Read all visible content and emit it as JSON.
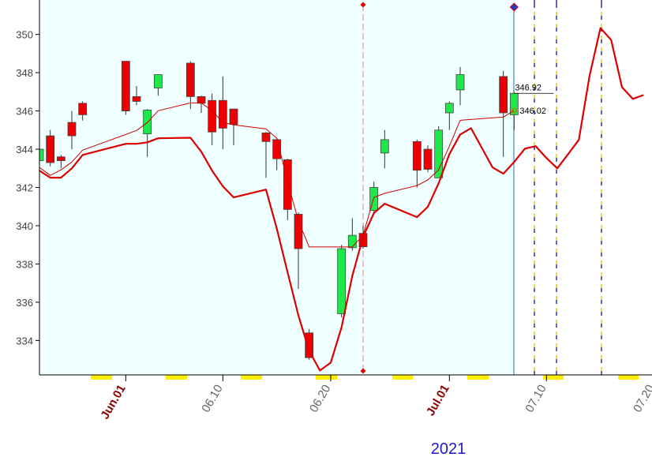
{
  "chart_data": {
    "type": "candlestick",
    "year_label": "2021",
    "xlim": [
      "2021-05-24",
      "2021-07-20"
    ],
    "xticks": [
      {
        "value": "2021-06-01",
        "label": "Jun.01"
      },
      {
        "value": "2021-06-10",
        "label": "06.10"
      },
      {
        "value": "2021-06-20",
        "label": "06.20"
      },
      {
        "value": "2021-07-01",
        "label": "Jul.01"
      },
      {
        "value": "2021-07-10",
        "label": "07.10"
      },
      {
        "value": "2021-07-20",
        "label": "07.20"
      }
    ],
    "ylim": [
      332.2,
      351.8
    ],
    "yticks": [
      334,
      336,
      338,
      340,
      342,
      344,
      346,
      348,
      350
    ],
    "up_color": "#1ee84a",
    "down_color": "#ee0000",
    "candles": {
      "x": [
        "2021-05-24",
        "2021-05-25",
        "2021-05-26",
        "2021-05-27",
        "2021-05-28",
        "2021-06-01",
        "2021-06-02",
        "2021-06-03",
        "2021-06-04",
        "2021-06-07",
        "2021-06-08",
        "2021-06-09",
        "2021-06-10",
        "2021-06-11",
        "2021-06-14",
        "2021-06-15",
        "2021-06-16",
        "2021-06-17",
        "2021-06-18",
        "2021-06-21",
        "2021-06-22",
        "2021-06-23",
        "2021-06-24",
        "2021-06-25",
        "2021-06-28",
        "2021-06-29",
        "2021-06-30",
        "2021-07-01",
        "2021-07-02",
        "2021-07-06",
        "2021-07-07"
      ],
      "open": [
        343.4,
        344.7,
        343.6,
        345.4,
        346.4,
        348.6,
        346.75,
        344.8,
        347.2,
        348.5,
        346.75,
        346.55,
        346.55,
        346.1,
        344.85,
        344.5,
        343.45,
        340.6,
        334.4,
        335.4,
        338.85,
        339.6,
        340.8,
        343.8,
        344.4,
        344.0,
        342.5,
        345.9,
        347.1,
        347.8,
        345.8
      ],
      "high": [
        344.3,
        345.0,
        343.7,
        346.0,
        346.5,
        348.6,
        347.3,
        346.1,
        347.9,
        348.6,
        346.8,
        346.9,
        347.8,
        346.1,
        344.9,
        344.6,
        343.5,
        340.7,
        334.6,
        339.0,
        340.4,
        340.0,
        342.3,
        345.0,
        344.5,
        344.2,
        345.2,
        346.5,
        348.3,
        348.1,
        347.0
      ],
      "low": [
        343.2,
        343.1,
        343.0,
        344.0,
        345.5,
        345.8,
        346.3,
        343.6,
        346.8,
        346.1,
        345.9,
        344.2,
        344.0,
        344.2,
        342.5,
        342.9,
        340.3,
        336.7,
        333.0,
        335.2,
        338.7,
        338.8,
        340.6,
        343.0,
        342.0,
        342.8,
        342.5,
        345.0,
        346.3,
        343.6,
        345.0
      ],
      "close": [
        344.0,
        343.3,
        343.4,
        344.7,
        345.8,
        346.0,
        346.5,
        346.05,
        347.9,
        346.75,
        346.4,
        344.9,
        345.1,
        345.3,
        344.4,
        343.5,
        340.85,
        338.8,
        333.1,
        338.8,
        339.5,
        338.9,
        342.0,
        344.5,
        342.9,
        342.95,
        345.0,
        346.4,
        347.9,
        345.9,
        346.92
      ]
    },
    "series": [
      {
        "color": "#cc0000",
        "line_width": 1,
        "x": [
          "2021-05-24",
          "2021-05-25",
          "2021-05-26",
          "2021-05-27",
          "2021-05-28",
          "2021-06-01",
          "2021-06-02",
          "2021-06-03",
          "2021-06-04",
          "2021-06-07",
          "2021-06-08",
          "2021-06-09",
          "2021-06-10",
          "2021-06-11",
          "2021-06-14",
          "2021-06-15",
          "2021-06-16",
          "2021-06-17",
          "2021-06-18",
          "2021-06-21",
          "2021-06-22",
          "2021-06-23",
          "2021-06-24",
          "2021-06-25",
          "2021-06-28",
          "2021-06-29",
          "2021-06-30",
          "2021-07-01",
          "2021-07-02",
          "2021-07-06",
          "2021-07-07"
        ],
        "values": [
          343.05,
          342.63,
          342.92,
          343.33,
          343.95,
          344.77,
          344.98,
          345.39,
          346.01,
          346.42,
          346.42,
          346.01,
          345.39,
          345.27,
          345.06,
          344.57,
          342.3,
          340.25,
          338.89,
          338.89,
          338.89,
          339.51,
          341.48,
          341.69,
          342.1,
          342.39,
          342.92,
          344.16,
          345.51,
          345.68,
          346.02
        ]
      },
      {
        "color": "#dd0000",
        "line_width": 2.2,
        "x": [
          "2021-05-24",
          "2021-05-25",
          "2021-05-26",
          "2021-05-27",
          "2021-05-28",
          "2021-06-01",
          "2021-06-02",
          "2021-06-03",
          "2021-06-04",
          "2021-06-07",
          "2021-06-08",
          "2021-06-09",
          "2021-06-10",
          "2021-06-11",
          "2021-06-14",
          "2021-06-15",
          "2021-06-16",
          "2021-06-17",
          "2021-06-18",
          "2021-06-19",
          "2021-06-20",
          "2021-06-21",
          "2021-06-22",
          "2021-06-23",
          "2021-06-24",
          "2021-06-25",
          "2021-06-28",
          "2021-06-29",
          "2021-06-30",
          "2021-07-01",
          "2021-07-02",
          "2021-07-03",
          "2021-07-05",
          "2021-07-06",
          "2021-07-07",
          "2021-07-08",
          "2021-07-09",
          "2021-07-10",
          "2021-07-11",
          "2021-07-12",
          "2021-07-13",
          "2021-07-14",
          "2021-07-15",
          "2021-07-16",
          "2021-07-17",
          "2021-07-18",
          "2021-07-19"
        ],
        "values": [
          342.88,
          342.51,
          342.51,
          343.0,
          343.7,
          344.28,
          344.28,
          344.36,
          344.57,
          344.6,
          343.87,
          342.88,
          342.06,
          341.48,
          341.89,
          339.84,
          337.57,
          335.31,
          333.46,
          332.43,
          332.84,
          334.69,
          337.37,
          339.42,
          340.66,
          341.15,
          340.45,
          340.99,
          342.22,
          343.74,
          344.77,
          345.1,
          343.05,
          342.72,
          343.33,
          344.03,
          344.16,
          343.54,
          343.0,
          343.74,
          344.49,
          347.86,
          350.33,
          349.71,
          347.24,
          346.63,
          346.83
        ]
      }
    ]
  }
}
